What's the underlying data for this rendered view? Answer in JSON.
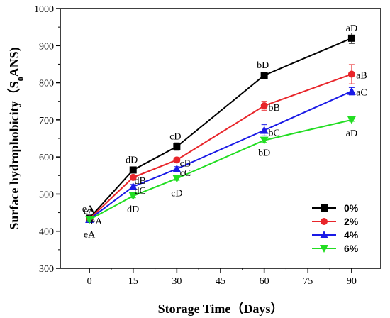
{
  "chart_data": {
    "type": "line",
    "xlabel": "Storage Time（Days）",
    "ylabel_prefix": "Surface hydrophobicity（S",
    "ylabel_sub": "0",
    "ylabel_suffix": "ANS)",
    "x_ticks": [
      0,
      15,
      30,
      45,
      60,
      75,
      90
    ],
    "y_ticks": [
      300,
      400,
      500,
      600,
      700,
      800,
      900,
      1000
    ],
    "xlim": [
      -10,
      100
    ],
    "ylim": [
      300,
      1000
    ],
    "legend_position": "bottom-right",
    "series": [
      {
        "name": "0%",
        "color": "#000000",
        "marker": "square",
        "x": [
          0,
          15,
          30,
          60,
          90
        ],
        "y": [
          435,
          565,
          628,
          820,
          920
        ],
        "err": [
          5,
          6,
          10,
          8,
          14
        ],
        "labels": [
          "eA",
          "dD",
          "cD",
          "bD",
          "aD"
        ]
      },
      {
        "name": "2%",
        "color": "#e8252a",
        "marker": "circle",
        "x": [
          0,
          15,
          30,
          60,
          90
        ],
        "y": [
          433,
          545,
          592,
          738,
          823
        ],
        "err": [
          5,
          6,
          6,
          12,
          26
        ],
        "labels": [
          "eA",
          "dB",
          "cB",
          "bB",
          "aB"
        ]
      },
      {
        "name": "4%",
        "color": "#1a1ae6",
        "marker": "triangle-up",
        "x": [
          0,
          15,
          30,
          60,
          90
        ],
        "y": [
          432,
          520,
          568,
          672,
          777
        ],
        "err": [
          5,
          6,
          6,
          15,
          10
        ],
        "labels": [
          "eA",
          "dC",
          "cC",
          "bC",
          "aC"
        ]
      },
      {
        "name": "6%",
        "color": "#22dd22",
        "marker": "triangle-down",
        "x": [
          0,
          15,
          30,
          60,
          90
        ],
        "y": [
          431,
          495,
          542,
          645,
          700
        ],
        "err": [
          5,
          5,
          5,
          6,
          4
        ],
        "labels": [
          "eA",
          "dD",
          "cD",
          "bD",
          "aD"
        ]
      }
    ]
  }
}
